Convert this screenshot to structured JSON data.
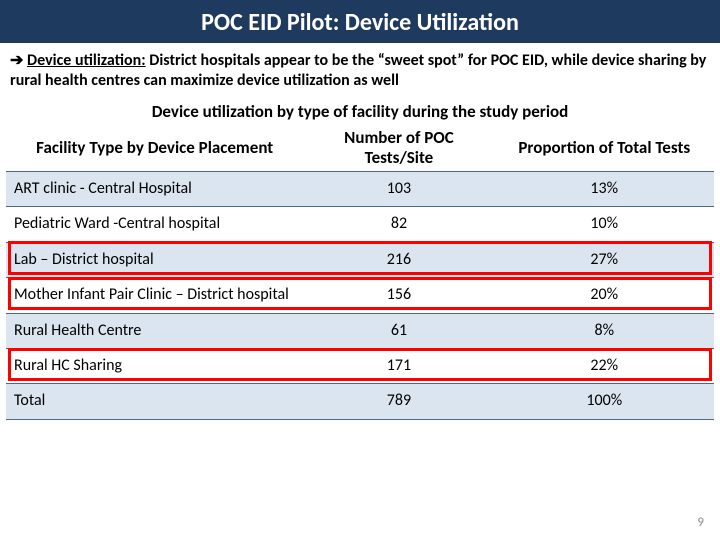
{
  "title": "POC EID Pilot: Device Utilization",
  "arrow": "➔",
  "summary_lead": "Device utilization:",
  "summary_rest": " District hospitals appear to be the “sweet spot” for POC EID, while device sharing by rural health centres can maximize device utilization as well",
  "caption": "Device utilization by type of facility during the study period",
  "columns": {
    "c0": "Facility Type by Device Placement",
    "c1": "Number of POC Tests/Site",
    "c2": "Proportion of Total Tests"
  },
  "rows": [
    {
      "facility": "ART clinic - Central Hospital",
      "tests": "103",
      "prop": "13%",
      "band": true,
      "highlight": false
    },
    {
      "facility": "Pediatric Ward -Central hospital",
      "tests": "82",
      "prop": "10%",
      "band": false,
      "highlight": false
    },
    {
      "facility": "Lab – District hospital",
      "tests": "216",
      "prop": "27%",
      "band": true,
      "highlight": true
    },
    {
      "facility": "Mother Infant Pair Clinic – District hospital",
      "tests": "156",
      "prop": "20%",
      "band": false,
      "highlight": true
    },
    {
      "facility": "Rural Health Centre",
      "tests": "61",
      "prop": "8%",
      "band": true,
      "highlight": false
    },
    {
      "facility": "Rural HC Sharing",
      "tests": "171",
      "prop": "22%",
      "band": false,
      "highlight": true
    },
    {
      "facility": "Total",
      "tests": "789",
      "prop": "100%",
      "band": true,
      "highlight": false
    }
  ],
  "col_widths": [
    "42%",
    "27%",
    "31%"
  ],
  "page_number": "9",
  "colors": {
    "title_bg": "#1f3a5f",
    "band_bg": "#dbe5ef",
    "border": "#4a6a8a",
    "highlight": "#ff0000"
  }
}
